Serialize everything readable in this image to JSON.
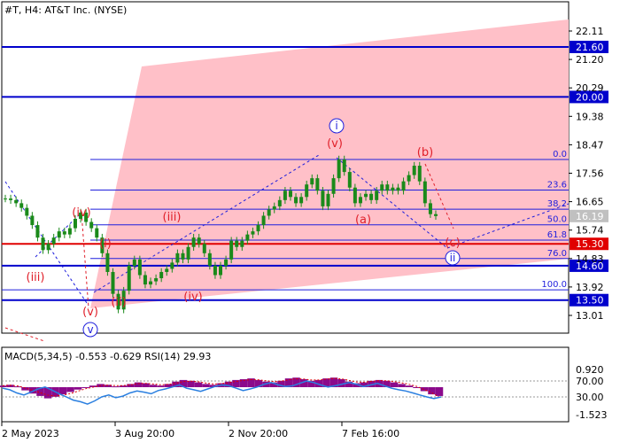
{
  "header": {
    "title": "#T, H4:  AT&T Inc. (NYSE)",
    "indicator_title": "MACD(5,34,5) -0.553 -0.629 RSI(14) 29.93"
  },
  "colors": {
    "candle": "#1a8a1a",
    "channel_fill": "#ffc0c8",
    "level_blue": "#0000cc",
    "level_red": "#e00000",
    "fib_line": "#1f1fdd",
    "wave_red": "#e0202a",
    "wave_blue": "#1f1fdd",
    "macd_hist": "#8b0a8b",
    "macd_signal": "#e00000",
    "rsi_line": "#2a7fe0",
    "tag_red_bg": "#e00000",
    "tag_blue_bg": "#0000cc",
    "tag_gray_bg": "#c0c0c0"
  },
  "chart_data": {
    "type": "line",
    "series": [
      {
        "values": [
          16.75,
          16.7,
          16.6,
          16.45,
          16.2,
          15.9,
          15.5,
          15.1,
          15.3,
          15.5,
          15.7,
          15.6,
          15.8,
          16.1,
          16.3,
          16.0,
          15.8,
          15.5,
          15.0,
          14.4,
          13.7,
          13.2,
          13.8,
          14.6,
          14.8,
          14.3,
          14.0,
          14.1,
          14.2,
          14.4,
          14.5,
          14.7,
          15.0,
          14.8,
          15.2,
          15.5,
          15.3,
          15.0,
          14.6,
          14.3,
          14.6,
          14.8,
          15.4,
          15.2,
          15.4,
          15.6,
          15.7,
          15.9,
          16.2,
          16.4,
          16.5,
          16.7,
          17.0,
          16.8,
          16.6,
          16.8,
          17.2,
          17.4,
          17.0,
          16.5,
          16.9,
          17.4,
          18.0,
          17.6,
          17.1,
          16.6,
          16.8,
          16.9,
          16.7,
          17.0,
          17.2,
          17.0,
          17.1,
          17.0,
          17.3,
          17.5,
          17.8,
          17.3,
          16.6,
          16.25,
          16.19
        ]
      }
    ],
    "y_axis": {
      "ticks": [
        "22.11",
        "21.20",
        "20.29",
        "19.38",
        "18.47",
        "17.56",
        "16.65",
        "15.74",
        "14.83",
        "13.92",
        "13.01"
      ],
      "ylim": [
        12.6,
        22.6
      ]
    },
    "x_axis": {
      "ticks": [
        "2 May 2023",
        "3 Aug 20:00",
        "2 Nov 20:00",
        "7 Feb 16:00"
      ]
    },
    "price_levels": [
      {
        "value": 21.6,
        "label": "21.60",
        "style": "blue"
      },
      {
        "value": 20.0,
        "label": "20.00",
        "style": "blue"
      },
      {
        "value": 15.3,
        "label": "15.30",
        "style": "red"
      },
      {
        "value": 14.6,
        "label": "14.60",
        "style": "blue"
      },
      {
        "value": 13.5,
        "label": "13.50",
        "style": "blue"
      }
    ],
    "current_price": "16.19",
    "fibonacci": [
      {
        "label": "0.0",
        "price": 18.0
      },
      {
        "label": "23.6",
        "price": 17.02
      },
      {
        "label": "38.2",
        "price": 16.41
      },
      {
        "label": "50.0",
        "price": 15.91
      },
      {
        "label": "61.8",
        "price": 15.42
      },
      {
        "label": "76.0",
        "price": 14.83
      },
      {
        "label": "100.0",
        "price": 13.83
      }
    ],
    "wave_labels_red": [
      "(iii)",
      "(iv)",
      "(v)",
      "(i)",
      "(ii)",
      "(iii)",
      "(iv)",
      "(v)",
      "(a)",
      "(b)",
      "(c)"
    ],
    "wave_labels_blue": [
      "v",
      "i",
      "ii"
    ],
    "indicator": {
      "ticks": [
        "70.00",
        "30.00",
        "0.920",
        "-1.523"
      ],
      "rsi": [
        52,
        48,
        40,
        35,
        42,
        50,
        55,
        47,
        38,
        30,
        22,
        18,
        12,
        20,
        30,
        35,
        28,
        32,
        40,
        45,
        42,
        38,
        46,
        50,
        55,
        60,
        52,
        48,
        44,
        50,
        56,
        60,
        58,
        52,
        46,
        50,
        55,
        62,
        66,
        60,
        56,
        58,
        64,
        70,
        66,
        60,
        55,
        58,
        62,
        66,
        62,
        56,
        60,
        64,
        58,
        52,
        48,
        45,
        40,
        35,
        30,
        26,
        29.93
      ],
      "macd": [
        0.1,
        0.15,
        0.05,
        -0.2,
        -0.4,
        -0.55,
        -0.7,
        -0.6,
        -0.45,
        -0.3,
        -0.15,
        0.0,
        0.1,
        0.2,
        0.15,
        0.05,
        0.1,
        0.2,
        0.3,
        0.25,
        0.15,
        0.1,
        0.2,
        0.35,
        0.45,
        0.4,
        0.3,
        0.2,
        0.15,
        0.25,
        0.35,
        0.45,
        0.5,
        0.55,
        0.45,
        0.35,
        0.3,
        0.4,
        0.55,
        0.6,
        0.5,
        0.4,
        0.45,
        0.55,
        0.6,
        0.5,
        0.35,
        0.25,
        0.3,
        0.4,
        0.45,
        0.4,
        0.3,
        0.2,
        0.1,
        -0.05,
        -0.25,
        -0.45,
        -0.553
      ],
      "signal": [
        0.1,
        0.12,
        0.08,
        -0.05,
        -0.2,
        -0.35,
        -0.5,
        -0.55,
        -0.5,
        -0.4,
        -0.25,
        -0.1,
        0.0,
        0.1,
        0.12,
        0.1,
        0.1,
        0.15,
        0.22,
        0.24,
        0.2,
        0.15,
        0.17,
        0.25,
        0.35,
        0.38,
        0.34,
        0.26,
        0.2,
        0.22,
        0.28,
        0.36,
        0.42,
        0.48,
        0.46,
        0.4,
        0.35,
        0.38,
        0.46,
        0.53,
        0.51,
        0.45,
        0.45,
        0.5,
        0.55,
        0.52,
        0.43,
        0.33,
        0.31,
        0.36,
        0.41,
        0.4,
        0.35,
        0.27,
        0.18,
        0.05,
        -0.15,
        -0.35,
        -0.629
      ]
    }
  }
}
